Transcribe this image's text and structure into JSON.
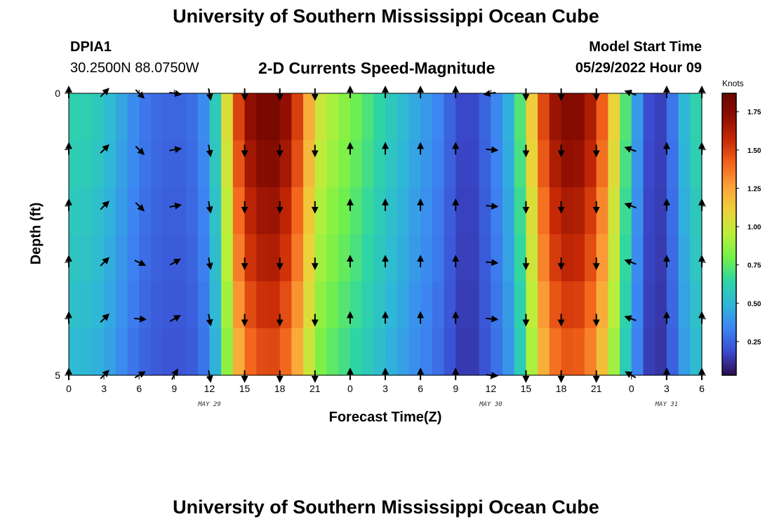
{
  "title": "University of Southern Mississippi Ocean Cube",
  "bottom_title": "University of Southern Mississippi Ocean Cube",
  "station": {
    "id": "DPIA1",
    "coords": "30.2500N  88.0750W"
  },
  "subtitle": "2-D Currents Speed-Magnitude",
  "model_start": {
    "label": "Model Start Time",
    "value": "05/29/2022 Hour 09"
  },
  "colors": {
    "stops": [
      "#2d0b4e",
      "#3a4bd0",
      "#3d84f2",
      "#2fb6d9",
      "#2ed5a5",
      "#72f04a",
      "#b8f03a",
      "#ecd23a",
      "#fba43a",
      "#f3651c",
      "#c82a06",
      "#8e0e02",
      "#6a0500"
    ]
  },
  "chart_data": {
    "type": "heatmap",
    "title": "2-D Currents Speed-Magnitude",
    "xlabel": "Forecast Time(Z)",
    "ylabel": "Depth (ft)",
    "x_ticks": [
      "0",
      "3",
      "6",
      "9",
      "12",
      "15",
      "18",
      "21",
      "0",
      "3",
      "6",
      "9",
      "12",
      "15",
      "18",
      "21",
      "0",
      "3",
      "6"
    ],
    "x_range_hours": [
      0,
      54
    ],
    "date_labels": [
      {
        "text": "MAY 29",
        "hour": 12
      },
      {
        "text": "MAY 30",
        "hour": 36
      },
      {
        "text": "MAY 31",
        "hour": 51
      }
    ],
    "y_ticks": [
      "0",
      "",
      "",
      "",
      "",
      "5"
    ],
    "y_range": [
      0,
      5
    ],
    "depth_levels": [
      0,
      1,
      2,
      3,
      4,
      5
    ],
    "colorbar": {
      "title": "Knots",
      "range": [
        0.03,
        1.87
      ],
      "tick_values": [
        0.25,
        0.5,
        0.75,
        1.0,
        1.25,
        1.5,
        1.75
      ],
      "tick_labels": [
        "0.25",
        "0.50",
        "0.75",
        "1.00",
        "1.25",
        "1.50",
        "1.75"
      ]
    },
    "speed_hours": [
      0,
      1,
      2,
      3,
      4,
      5,
      6,
      7,
      8,
      9,
      10,
      11,
      12,
      13,
      14,
      15,
      16,
      17,
      18,
      19,
      20,
      21,
      22,
      23,
      24,
      25,
      26,
      27,
      28,
      29,
      30,
      31,
      32,
      33,
      34,
      35,
      36,
      37,
      38,
      39,
      40,
      41,
      42,
      43,
      44,
      45,
      46,
      47,
      48,
      49,
      50,
      51,
      52,
      53,
      54
    ],
    "speed_knots": [
      0.62,
      0.62,
      0.6,
      0.55,
      0.48,
      0.4,
      0.33,
      0.28,
      0.26,
      0.25,
      0.26,
      0.3,
      0.42,
      0.75,
      1.35,
      1.65,
      1.78,
      1.82,
      1.8,
      1.62,
      1.4,
      1.05,
      0.95,
      0.88,
      0.82,
      0.75,
      0.68,
      0.6,
      0.55,
      0.48,
      0.42,
      0.38,
      0.3,
      0.2,
      0.15,
      0.2,
      0.3,
      0.4,
      0.55,
      0.9,
      1.35,
      1.62,
      1.75,
      1.78,
      1.72,
      1.55,
      1.3,
      0.9,
      0.55,
      0.25,
      0.12,
      0.2,
      0.4,
      0.6,
      0.65
    ],
    "depth_factor": [
      1.0,
      0.97,
      0.93,
      0.9,
      0.86,
      0.82
    ],
    "arrow_hours": [
      0,
      3,
      6,
      9,
      12,
      15,
      18,
      21,
      24,
      27,
      30,
      33,
      36,
      39,
      42,
      45,
      48,
      51,
      54
    ],
    "arrow_depths": [
      0,
      1,
      2,
      3,
      4,
      5
    ],
    "arrow_directions_deg": [
      [
        0,
        45,
        135,
        100,
        170,
        180,
        180,
        180,
        360,
        360,
        360,
        360,
        260,
        180,
        180,
        180,
        290,
        360,
        360
      ],
      [
        0,
        45,
        135,
        80,
        170,
        180,
        180,
        180,
        360,
        360,
        360,
        360,
        95,
        180,
        180,
        180,
        290,
        360,
        360
      ],
      [
        0,
        45,
        135,
        80,
        170,
        180,
        180,
        180,
        360,
        360,
        360,
        360,
        95,
        180,
        180,
        180,
        290,
        360,
        360
      ],
      [
        0,
        45,
        115,
        60,
        170,
        180,
        180,
        180,
        360,
        360,
        360,
        360,
        95,
        180,
        180,
        180,
        290,
        360,
        360
      ],
      [
        0,
        45,
        95,
        60,
        170,
        180,
        180,
        180,
        360,
        360,
        360,
        360,
        95,
        180,
        180,
        180,
        290,
        360,
        360
      ],
      [
        0,
        45,
        60,
        30,
        170,
        180,
        180,
        180,
        360,
        360,
        360,
        360,
        95,
        180,
        180,
        180,
        300,
        360,
        360
      ]
    ]
  }
}
